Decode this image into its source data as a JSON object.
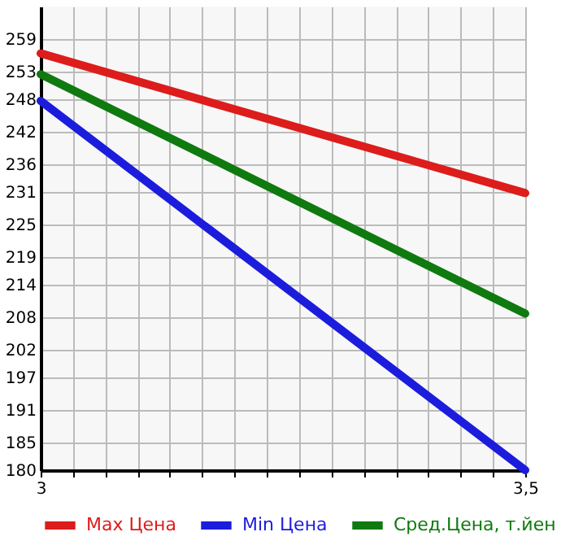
{
  "chart_data": {
    "type": "line",
    "x": [
      3,
      3.5
    ],
    "series": [
      {
        "name": "Max Цена",
        "color": "#dd1c1c",
        "values": [
          256.4,
          230.8
        ]
      },
      {
        "name": "Min Цена",
        "color": "#1c1cdd",
        "values": [
          247.7,
          180
        ]
      },
      {
        "name": "Сред.Цена, т.йен",
        "color": "#0f7a0f",
        "values": [
          252.6,
          208.7
        ]
      }
    ],
    "xlim": [
      3,
      3.5
    ],
    "xticks": [
      {
        "value": 3,
        "label": "3"
      },
      {
        "value": 3.0333,
        "label": null
      },
      {
        "value": 3.0667,
        "label": null
      },
      {
        "value": 3.1,
        "label": null
      },
      {
        "value": 3.1333,
        "label": null
      },
      {
        "value": 3.1667,
        "label": null
      },
      {
        "value": 3.2,
        "label": null
      },
      {
        "value": 3.2333,
        "label": null
      },
      {
        "value": 3.2667,
        "label": null
      },
      {
        "value": 3.3,
        "label": null
      },
      {
        "value": 3.3333,
        "label": null
      },
      {
        "value": 3.3667,
        "label": null
      },
      {
        "value": 3.4,
        "label": null
      },
      {
        "value": 3.4333,
        "label": null
      },
      {
        "value": 3.4667,
        "label": null
      },
      {
        "value": 3.5,
        "label": "3,5"
      }
    ],
    "ylim": [
      180,
      265
    ],
    "yticks": [
      180,
      185,
      191,
      197,
      202,
      208,
      214,
      219,
      225,
      231,
      236,
      242,
      248,
      253,
      259
    ],
    "grid": true,
    "legend": "bottom",
    "marker": "none",
    "line_style": "solid"
  }
}
